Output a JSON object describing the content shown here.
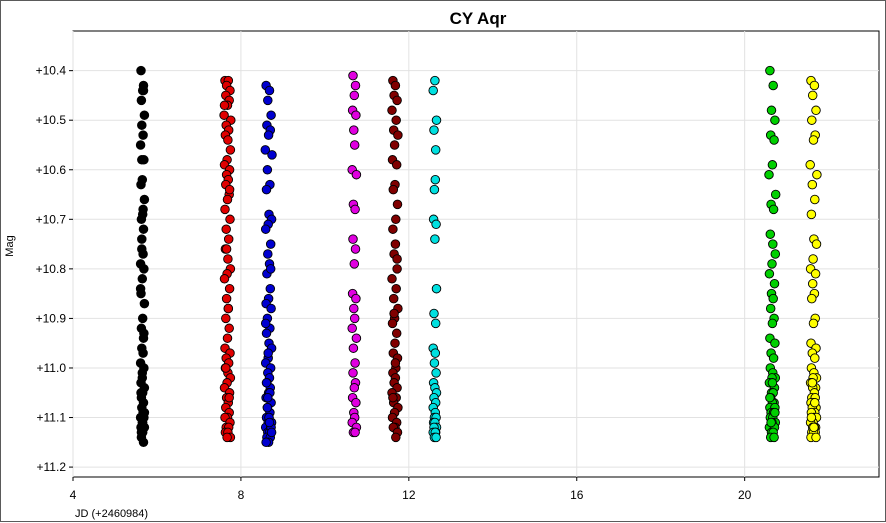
{
  "chart_data": {
    "type": "scatter",
    "title": "CY Aqr",
    "xlabel": "JD (+2460984)",
    "ylabel": "Mag",
    "xlim": [
      4,
      23.2
    ],
    "ylim": [
      11.22,
      10.32
    ],
    "y_inverted": true,
    "grid": true,
    "legend": "none",
    "x_ticks": [
      {
        "value": 4,
        "label": "4"
      },
      {
        "value": 8,
        "label": "8"
      },
      {
        "value": 12,
        "label": "12"
      },
      {
        "value": 16,
        "label": "16"
      },
      {
        "value": 20,
        "label": "20"
      }
    ],
    "y_ticks": [
      {
        "value": 10.4,
        "label": "+10.4"
      },
      {
        "value": 10.5,
        "label": "+10.5"
      },
      {
        "value": 10.6,
        "label": "+10.6"
      },
      {
        "value": 10.7,
        "label": "+10.7"
      },
      {
        "value": 10.8,
        "label": "+10.8"
      },
      {
        "value": 10.9,
        "label": "+10.9"
      },
      {
        "value": 11.0,
        "label": "+11.0"
      },
      {
        "value": 11.1,
        "label": "+11.1"
      },
      {
        "value": 11.2,
        "label": "+11.2"
      }
    ],
    "series": [
      {
        "color": "#000000",
        "x": [
          5.62,
          5.68,
          5.66,
          5.63,
          5.7,
          5.64,
          5.67,
          5.61,
          5.69,
          5.65,
          5.62,
          5.7,
          5.66,
          5.63,
          5.68,
          5.64,
          5.67,
          5.61,
          5.69,
          5.65,
          5.62,
          5.7,
          5.66,
          5.63,
          5.68,
          5.64,
          5.67,
          5.61,
          5.69,
          5.65,
          5.62,
          5.7,
          5.66,
          5.63,
          5.68,
          5.64,
          5.67,
          5.61,
          5.69,
          5.65,
          5.62,
          5.7,
          5.66,
          5.63,
          5.68,
          5.64,
          5.67,
          5.61,
          5.69,
          5.65,
          5.62,
          5.7,
          5.66,
          5.63,
          5.68,
          5.64
        ],
        "y": [
          10.4,
          10.43,
          10.44,
          10.46,
          10.49,
          10.51,
          10.53,
          10.55,
          10.58,
          10.62,
          10.63,
          10.66,
          10.69,
          10.7,
          10.72,
          10.74,
          10.77,
          10.79,
          10.8,
          10.82,
          10.85,
          10.87,
          10.9,
          10.92,
          10.94,
          10.96,
          10.97,
          10.99,
          11.0,
          11.02,
          11.03,
          11.04,
          11.05,
          11.06,
          11.07,
          11.08,
          11.09,
          11.1,
          11.1,
          11.11,
          11.12,
          11.12,
          11.13,
          11.14,
          11.15,
          10.58,
          10.68,
          10.84,
          10.93,
          11.01,
          11.05,
          11.09,
          11.11,
          11.13,
          10.44,
          10.76
        ]
      },
      {
        "color": "#e00000",
        "x": [
          7.62,
          7.7,
          7.66,
          7.74,
          7.64,
          7.72,
          7.68,
          7.6,
          7.76,
          7.65,
          7.71,
          7.63,
          7.69,
          7.75,
          7.67,
          7.61,
          7.73,
          7.66,
          7.7,
          7.64,
          7.72,
          7.68,
          7.62,
          7.74,
          7.65,
          7.71,
          7.63,
          7.69,
          7.75,
          7.67,
          7.61,
          7.73,
          7.66,
          7.7,
          7.64,
          7.72,
          7.68,
          7.62,
          7.74,
          7.65,
          7.71,
          7.63,
          7.69,
          7.75,
          7.67,
          7.61,
          7.73,
          7.66,
          7.7,
          7.64,
          7.72,
          7.68,
          7.62,
          7.74,
          7.65,
          7.71,
          7.63,
          7.69,
          7.75,
          7.67,
          7.61,
          7.73,
          7.66,
          7.7,
          7.64,
          7.72
        ],
        "y": [
          10.42,
          10.42,
          10.43,
          10.44,
          10.45,
          10.46,
          10.47,
          10.49,
          10.5,
          10.51,
          10.52,
          10.53,
          10.54,
          10.56,
          10.58,
          10.59,
          10.6,
          10.61,
          10.62,
          10.63,
          10.65,
          10.66,
          10.68,
          10.7,
          10.72,
          10.74,
          10.76,
          10.78,
          10.8,
          10.81,
          10.82,
          10.84,
          10.86,
          10.88,
          10.9,
          10.92,
          10.94,
          10.96,
          10.97,
          10.98,
          10.99,
          11.0,
          11.01,
          11.02,
          11.03,
          11.04,
          11.05,
          11.06,
          11.07,
          11.08,
          11.09,
          11.1,
          11.1,
          11.11,
          11.12,
          11.12,
          11.13,
          11.13,
          11.14,
          11.14,
          10.47,
          10.64,
          10.76,
          10.88,
          11.0,
          11.06
        ]
      },
      {
        "color": "#0000d0",
        "x": [
          8.6,
          8.68,
          8.64,
          8.72,
          8.62,
          8.7,
          8.66,
          8.58,
          8.74,
          8.63,
          8.69,
          8.61,
          8.67,
          8.73,
          8.65,
          8.59,
          8.71,
          8.64,
          8.68,
          8.62,
          8.7,
          8.66,
          8.6,
          8.72,
          8.63,
          8.69,
          8.61,
          8.67,
          8.73,
          8.65,
          8.59,
          8.71,
          8.64,
          8.68,
          8.62,
          8.7,
          8.66,
          8.6,
          8.72,
          8.63,
          8.69,
          8.61,
          8.67,
          8.73,
          8.65,
          8.59,
          8.71,
          8.64,
          8.68,
          8.62,
          8.7,
          8.66,
          8.6,
          8.72,
          8.63,
          8.69,
          8.61,
          8.67,
          8.73,
          8.65,
          8.59,
          8.71,
          8.64,
          8.68
        ],
        "y": [
          10.43,
          10.44,
          10.46,
          10.49,
          10.51,
          10.52,
          10.53,
          10.56,
          10.57,
          10.6,
          10.63,
          10.64,
          10.69,
          10.7,
          10.71,
          10.72,
          10.75,
          10.77,
          10.79,
          10.81,
          10.84,
          10.86,
          10.87,
          10.88,
          10.9,
          10.92,
          10.93,
          10.95,
          10.96,
          10.98,
          10.99,
          11.0,
          11.01,
          11.02,
          11.03,
          11.04,
          11.05,
          11.06,
          11.07,
          11.08,
          11.09,
          11.1,
          11.1,
          11.11,
          11.11,
          11.12,
          11.12,
          11.13,
          11.13,
          11.14,
          11.14,
          11.15,
          11.15,
          11.12,
          11.08,
          11.05,
          11.03,
          11.1,
          11.13,
          10.97,
          10.91,
          10.8,
          11.06,
          11.11
        ]
      },
      {
        "color": "#e000e0",
        "x": [
          10.67,
          10.73,
          10.7,
          10.66,
          10.74,
          10.69,
          10.71,
          10.65,
          10.75,
          10.68,
          10.72,
          10.67,
          10.73,
          10.7,
          10.66,
          10.74,
          10.69,
          10.71,
          10.65,
          10.75,
          10.68,
          10.72,
          10.67,
          10.73,
          10.7,
          10.66,
          10.74,
          10.69,
          10.71,
          10.65,
          10.75,
          10.68,
          10.72
        ],
        "y": [
          10.41,
          10.43,
          10.45,
          10.48,
          10.49,
          10.52,
          10.55,
          10.6,
          10.61,
          10.67,
          10.68,
          10.74,
          10.76,
          10.79,
          10.85,
          10.86,
          10.88,
          10.9,
          10.92,
          10.94,
          10.96,
          10.99,
          11.01,
          11.03,
          11.04,
          11.06,
          11.07,
          11.09,
          11.1,
          11.11,
          11.12,
          11.13,
          11.13
        ]
      },
      {
        "color": "#800000",
        "x": [
          11.62,
          11.68,
          11.65,
          11.72,
          11.6,
          11.7,
          11.64,
          11.74,
          11.66,
          11.61,
          11.71,
          11.67,
          11.63,
          11.73,
          11.69,
          11.62,
          11.68,
          11.65,
          11.72,
          11.6,
          11.7,
          11.64,
          11.74,
          11.66,
          11.61,
          11.71,
          11.67,
          11.63,
          11.73,
          11.69,
          11.62,
          11.68,
          11.65,
          11.72,
          11.6,
          11.7,
          11.64,
          11.74,
          11.66,
          11.61,
          11.71,
          11.67,
          11.63,
          11.73,
          11.69,
          11.62,
          11.68,
          11.65,
          11.72
        ],
        "y": [
          10.42,
          10.43,
          10.45,
          10.46,
          10.48,
          10.5,
          10.52,
          10.53,
          10.55,
          10.58,
          10.59,
          10.63,
          10.64,
          10.67,
          10.7,
          10.72,
          10.75,
          10.77,
          10.8,
          10.82,
          10.84,
          10.86,
          10.88,
          10.9,
          10.91,
          10.93,
          10.95,
          10.97,
          10.98,
          11.0,
          11.01,
          11.02,
          11.03,
          11.04,
          11.05,
          11.06,
          11.07,
          11.08,
          11.09,
          11.1,
          11.11,
          11.12,
          11.12,
          11.13,
          11.14,
          11.06,
          10.99,
          10.89,
          10.78
        ]
      },
      {
        "color": "#00e0e0",
        "x": [
          12.62,
          12.58,
          12.66,
          12.6,
          12.64,
          12.63,
          12.61,
          12.59,
          12.65,
          12.62,
          12.66,
          12.6,
          12.64,
          12.58,
          12.63,
          12.61,
          12.65,
          12.59,
          12.62,
          12.66,
          12.6,
          12.64,
          12.58,
          12.63,
          12.61,
          12.65,
          12.59,
          12.62,
          12.66,
          12.6,
          12.64,
          12.58,
          12.63,
          12.61,
          12.65
        ],
        "y": [
          10.42,
          10.44,
          10.5,
          10.52,
          10.56,
          10.62,
          10.64,
          10.7,
          10.71,
          10.74,
          10.84,
          10.89,
          10.91,
          10.96,
          10.97,
          10.99,
          11.01,
          11.03,
          11.04,
          11.05,
          11.06,
          11.07,
          11.08,
          11.09,
          11.1,
          11.1,
          11.11,
          11.11,
          11.12,
          11.12,
          11.13,
          11.13,
          11.13,
          11.14,
          11.14
        ]
      },
      {
        "color": "#00d000",
        "x": [
          20.6,
          20.68,
          20.64,
          20.72,
          20.62,
          20.7,
          20.66,
          20.58,
          20.74,
          20.63,
          20.69,
          20.61,
          20.67,
          20.73,
          20.65,
          20.59,
          20.71,
          20.64,
          20.68,
          20.62,
          20.7,
          20.66,
          20.6,
          20.72,
          20.63,
          20.69,
          20.61,
          20.67,
          20.73,
          20.65,
          20.59,
          20.71,
          20.64,
          20.68,
          20.62,
          20.7,
          20.66,
          20.6,
          20.72,
          20.63,
          20.69,
          20.61,
          20.67,
          20.73,
          20.65,
          20.59,
          20.71,
          20.64,
          20.68,
          20.62,
          20.7,
          20.66,
          20.6,
          20.72,
          20.63
        ],
        "y": [
          10.4,
          10.43,
          10.48,
          10.5,
          10.53,
          10.54,
          10.59,
          10.61,
          10.65,
          10.67,
          10.68,
          10.73,
          10.75,
          10.77,
          10.79,
          10.81,
          10.83,
          10.85,
          10.86,
          10.88,
          10.9,
          10.91,
          10.94,
          10.95,
          10.97,
          10.98,
          11.0,
          11.01,
          11.02,
          11.02,
          11.03,
          11.04,
          11.05,
          11.05,
          11.06,
          11.07,
          11.07,
          11.08,
          11.08,
          11.09,
          11.09,
          11.1,
          11.1,
          11.11,
          11.11,
          11.12,
          11.12,
          11.13,
          11.13,
          11.14,
          11.14,
          11.03,
          11.06,
          11.09,
          11.11
        ]
      },
      {
        "color": "#ffff00",
        "x": [
          21.58,
          21.66,
          21.62,
          21.7,
          21.6,
          21.68,
          21.64,
          21.56,
          21.72,
          21.61,
          21.67,
          21.59,
          21.65,
          21.71,
          21.63,
          21.57,
          21.69,
          21.62,
          21.66,
          21.6,
          21.68,
          21.64,
          21.58,
          21.7,
          21.61,
          21.67,
          21.59,
          21.65,
          21.71,
          21.63,
          21.57,
          21.69,
          21.62,
          21.66,
          21.6,
          21.68,
          21.64,
          21.58,
          21.7,
          21.61,
          21.67,
          21.59,
          21.65,
          21.71,
          21.63,
          21.57,
          21.69,
          21.62,
          21.66,
          21.6,
          21.68,
          21.64,
          21.58,
          21.7,
          21.61,
          21.67,
          21.59,
          21.65
        ],
        "y": [
          10.42,
          10.43,
          10.45,
          10.48,
          10.5,
          10.53,
          10.54,
          10.59,
          10.61,
          10.63,
          10.66,
          10.69,
          10.74,
          10.75,
          10.78,
          10.8,
          10.81,
          10.83,
          10.85,
          10.86,
          10.9,
          10.91,
          10.95,
          10.96,
          10.97,
          10.98,
          11.0,
          11.01,
          11.02,
          11.02,
          11.03,
          11.04,
          11.04,
          11.05,
          11.06,
          11.06,
          11.07,
          11.07,
          11.08,
          11.08,
          11.09,
          11.09,
          11.1,
          11.1,
          11.11,
          11.11,
          11.12,
          11.12,
          11.12,
          11.13,
          11.13,
          11.13,
          11.14,
          11.14,
          11.03,
          11.07,
          11.1,
          11.12
        ]
      }
    ]
  }
}
